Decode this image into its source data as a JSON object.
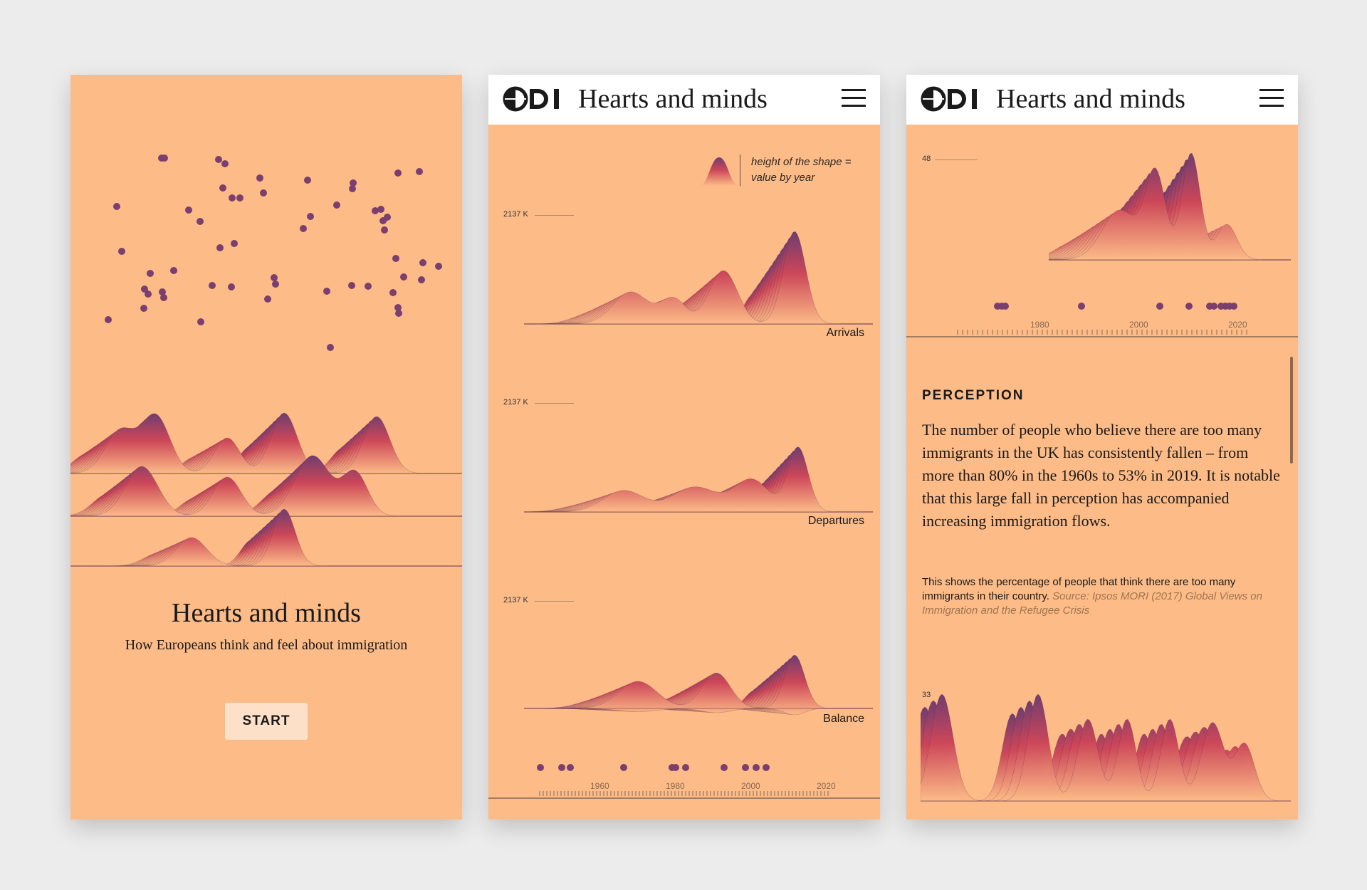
{
  "colors": {
    "background": "#ececec",
    "screen": "#fcbb87",
    "dots": "#7a3f6e",
    "ridge_top": "#7a3f6e",
    "ridge_mid": "#d64a57",
    "ridge_fade": "#fcbb87",
    "start_button": "#fde0c8"
  },
  "cover": {
    "title": "Hearts and minds",
    "subtitle": "How Europeans think and feel about immigration",
    "start_label": "START"
  },
  "header": {
    "logo": "ODI",
    "title": "Hearts and minds",
    "menu_icon": "hamburger-menu-icon"
  },
  "screen2": {
    "legend_text": "height of the shape = value by year",
    "charts": [
      {
        "label": "Arrivals",
        "max_label": "2137 K"
      },
      {
        "label": "Departures",
        "max_label": "2137 K"
      },
      {
        "label": "Balance",
        "max_label": "2137 K"
      }
    ],
    "timeline_years": [
      "1960",
      "1980",
      "2000",
      "2020"
    ]
  },
  "screen3": {
    "top_value": "48",
    "timeline_years": [
      "1980",
      "2000",
      "2020"
    ],
    "section_label": "PERCEPTION",
    "body": "The number of people who believe there are too many immigrants in the UK has consistently fallen – from more than 80% in the 1960s to 53% in 2019. It is notable that this large fall in perception has accompanied increasing immigration flows.",
    "note": "This shows the percentage of people that think there are too many immigrants in their country.",
    "source": "Source: Ipsos MORI (2017) Global Views on Immigration and the Refugee Crisis",
    "bottom_value": "33"
  }
}
